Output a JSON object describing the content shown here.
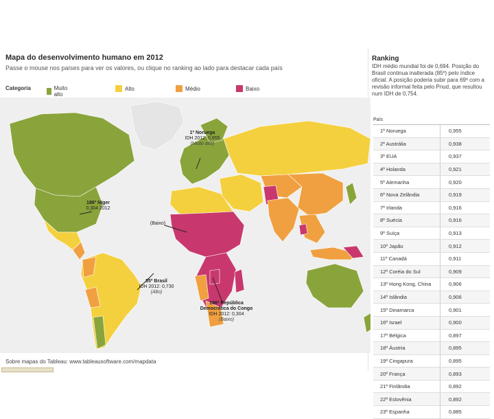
{
  "map": {
    "title": "Mapa do desenvolvimento humano em 2012",
    "subtitle": "Passe o mouse nos países para ver os valores, ou clique no ranking ao lado para destacar cada país",
    "legend": {
      "label": "Categoria",
      "items": [
        {
          "label": "Muito alto",
          "color": "#8aa43c"
        },
        {
          "label": "Alto",
          "color": "#f4d03f"
        },
        {
          "label": "Médio",
          "color": "#f0a040"
        },
        {
          "label": "Baixo",
          "color": "#c8386e"
        }
      ]
    },
    "annotations": {
      "norway": {
        "name": "1º Noruega",
        "value": "IDH 2012: 0,955",
        "category": "(Muito alto)"
      },
      "niger": {
        "name": "186º Níger",
        "value": "0,304",
        "extra": "2012"
      },
      "baixo": {
        "label": "(Baixo)"
      },
      "brazil": {
        "name": "85º Brasil",
        "value": "IDH 2012: 0,730",
        "category": "(Alto)"
      },
      "congo": {
        "name": "186º República Democrática do Congo",
        "value": "IDH 2012: 0,304",
        "category": "(Baixo)"
      }
    },
    "source": "Sobre mapas do Tableau: www.tableausoftware.com/mapdata"
  },
  "ranking": {
    "title": "Ranking",
    "description": "IDH médio mundial foi de 0,694. Posição do Brasil continua inalterada (85º) pelo índice oficial. A posição poderia subir para 69º com a revisão informal feita pelo Pnud, que resultou num IDH de 0,754.",
    "column_header": "País",
    "rows": [
      {
        "name": "1º Noruega",
        "value": "0,955"
      },
      {
        "name": "2º Austrália",
        "value": "0,938"
      },
      {
        "name": "3º EUA",
        "value": "0,937"
      },
      {
        "name": "4º Holanda",
        "value": "0,921"
      },
      {
        "name": "5º Alemanha",
        "value": "0,920"
      },
      {
        "name": "6º Nova Zelândia",
        "value": "0,919"
      },
      {
        "name": "7º Irlanda",
        "value": "0,916"
      },
      {
        "name": "8º Suécia",
        "value": "0,916"
      },
      {
        "name": "9º Suíça",
        "value": "0,913"
      },
      {
        "name": "10º Japão",
        "value": "0,912"
      },
      {
        "name": "11º Canadá",
        "value": "0,911"
      },
      {
        "name": "12º Coréia do Sul",
        "value": "0,909"
      },
      {
        "name": "13º Hong Kong, China",
        "value": "0,906"
      },
      {
        "name": "14º Islândia",
        "value": "0,906"
      },
      {
        "name": "15º Dinamarca",
        "value": "0,901"
      },
      {
        "name": "16º Israel",
        "value": "0,900"
      },
      {
        "name": "17º Bélgica",
        "value": "0,897"
      },
      {
        "name": "18º Áustria",
        "value": "0,895"
      },
      {
        "name": "19º Cingapura",
        "value": "0,895"
      },
      {
        "name": "20º França",
        "value": "0,893"
      },
      {
        "name": "21º Finlândia",
        "value": "0,892"
      },
      {
        "name": "22º Eslovênia",
        "value": "0,892"
      },
      {
        "name": "23º Espanha",
        "value": "0,885"
      }
    ]
  }
}
